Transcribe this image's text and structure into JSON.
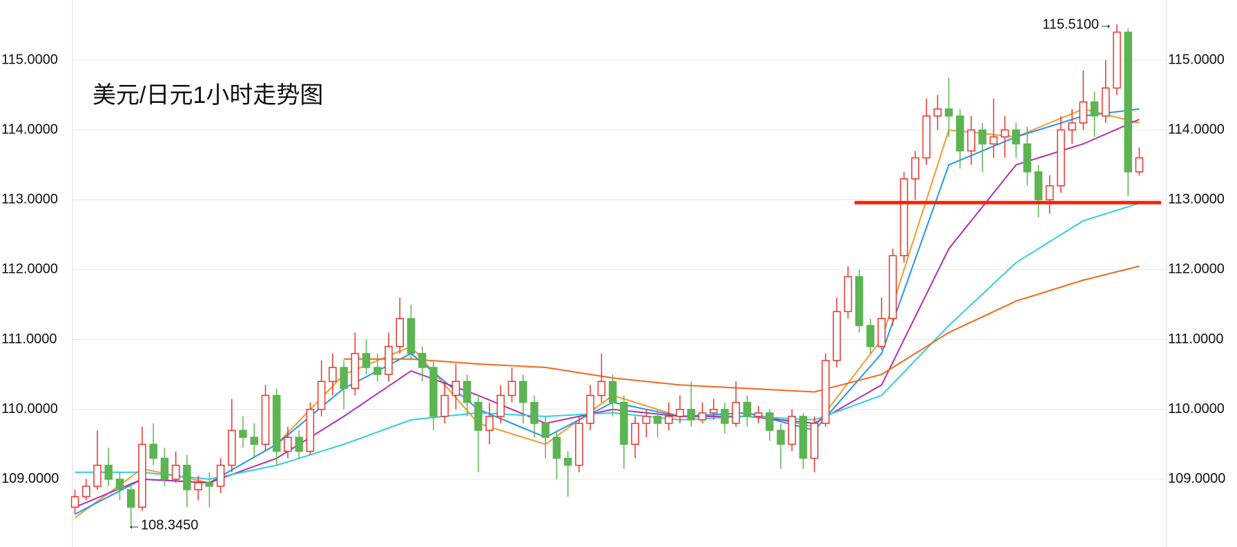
{
  "chart_data": {
    "type": "candlestick",
    "title": "美元/日元1小时走势图",
    "title_color": "#f0321e",
    "ylim": [
      108.03,
      115.86
    ],
    "yticks": [
      {
        "value": 109,
        "label": "109.0000"
      },
      {
        "value": 110,
        "label": "110.0000"
      },
      {
        "value": 111,
        "label": "111.0000"
      },
      {
        "value": 112,
        "label": "112.0000"
      },
      {
        "value": 113,
        "label": "113.0000"
      },
      {
        "value": 114,
        "label": "114.0000"
      },
      {
        "value": 115,
        "label": "115.0000"
      }
    ],
    "grid": true,
    "candles": {
      "up_color": "#e8332a",
      "down_color": "#5cb452",
      "open": [
        108.6,
        108.75,
        108.9,
        109.2,
        109.0,
        108.85,
        108.6,
        109.5,
        109.3,
        109.0,
        109.2,
        108.85,
        108.95,
        108.9,
        109.2,
        109.7,
        109.6,
        109.5,
        110.2,
        109.4,
        109.6,
        109.4,
        110.0,
        110.4,
        110.6,
        110.3,
        110.8,
        110.6,
        110.5,
        110.9,
        111.3,
        110.8,
        110.6,
        109.9,
        110.2,
        110.4,
        110.1,
        109.7,
        109.9,
        110.2,
        110.4,
        110.1,
        109.8,
        109.6,
        109.3,
        109.2,
        109.8,
        110.2,
        110.4,
        110.1,
        109.5,
        109.8,
        109.9,
        109.8,
        109.9,
        110.0,
        109.85,
        109.95,
        110.0,
        109.8,
        110.1,
        109.9,
        109.95,
        109.7,
        109.5,
        109.9,
        109.3,
        109.8,
        110.7,
        111.4,
        111.9,
        111.2,
        110.9,
        111.3,
        112.2,
        113.3,
        113.6,
        114.2,
        114.3,
        114.2,
        113.7,
        114.0,
        113.8,
        113.9,
        114.0,
        113.8,
        113.4,
        113.0,
        113.2,
        114.0,
        114.1,
        114.4,
        114.2,
        114.6,
        115.4,
        113.4
      ],
      "high": [
        108.85,
        109.0,
        109.7,
        109.45,
        109.1,
        108.95,
        109.75,
        109.8,
        109.45,
        109.4,
        109.35,
        109.05,
        109.1,
        109.3,
        110.15,
        109.9,
        109.8,
        110.35,
        110.3,
        109.75,
        109.7,
        110.1,
        110.7,
        110.8,
        110.7,
        111.1,
        111.0,
        110.8,
        111.1,
        111.6,
        111.5,
        110.9,
        110.7,
        110.4,
        110.65,
        110.5,
        110.2,
        110.1,
        110.35,
        110.6,
        110.5,
        110.2,
        109.9,
        109.7,
        109.4,
        109.9,
        110.35,
        110.8,
        110.5,
        110.2,
        109.9,
        110.0,
        110.0,
        110.1,
        110.2,
        110.4,
        110.1,
        110.15,
        110.1,
        110.4,
        110.2,
        110.05,
        110.0,
        109.8,
        110.0,
        109.95,
        109.9,
        110.8,
        111.6,
        112.05,
        112.0,
        111.3,
        111.6,
        112.3,
        113.4,
        113.7,
        114.45,
        114.5,
        114.75,
        114.3,
        114.2,
        114.1,
        114.45,
        114.2,
        114.1,
        114.05,
        113.5,
        113.35,
        114.2,
        114.3,
        114.85,
        114.55,
        115.0,
        115.51,
        115.45,
        113.75
      ],
      "low": [
        108.5,
        108.7,
        108.85,
        108.9,
        108.7,
        108.345,
        108.55,
        109.2,
        108.9,
        108.95,
        108.6,
        108.7,
        108.6,
        108.8,
        109.1,
        109.45,
        109.3,
        109.4,
        109.2,
        109.3,
        109.3,
        109.35,
        109.9,
        110.2,
        110.0,
        110.2,
        110.5,
        110.4,
        110.4,
        110.8,
        110.7,
        110.4,
        109.7,
        109.8,
        110.0,
        109.9,
        109.1,
        109.5,
        109.8,
        110.1,
        109.8,
        109.6,
        109.3,
        109.0,
        108.75,
        109.1,
        109.7,
        110.1,
        109.9,
        109.15,
        109.3,
        109.6,
        109.6,
        109.7,
        109.8,
        109.75,
        109.8,
        109.85,
        109.65,
        109.75,
        109.75,
        109.8,
        109.55,
        109.15,
        109.4,
        109.15,
        109.1,
        109.75,
        110.6,
        111.3,
        111.1,
        110.8,
        110.85,
        111.2,
        112.1,
        113.0,
        113.5,
        114.0,
        113.9,
        113.45,
        113.5,
        113.4,
        113.6,
        113.6,
        113.6,
        113.2,
        112.75,
        112.8,
        113.1,
        113.8,
        114.0,
        113.9,
        114.1,
        114.5,
        113.05,
        113.35
      ],
      "close": [
        108.75,
        108.9,
        109.2,
        109.0,
        108.85,
        108.6,
        109.5,
        109.3,
        109.0,
        109.2,
        108.85,
        108.95,
        108.9,
        109.2,
        109.7,
        109.6,
        109.5,
        110.2,
        109.4,
        109.6,
        109.4,
        110.0,
        110.4,
        110.6,
        110.3,
        110.8,
        110.6,
        110.5,
        110.9,
        111.3,
        110.8,
        110.6,
        109.9,
        110.2,
        110.4,
        110.1,
        109.7,
        109.9,
        110.2,
        110.4,
        110.1,
        109.8,
        109.6,
        109.3,
        109.2,
        109.8,
        110.2,
        110.4,
        110.1,
        109.5,
        109.8,
        109.9,
        109.8,
        109.9,
        110.0,
        109.85,
        109.95,
        110.0,
        109.8,
        110.1,
        109.9,
        109.95,
        109.7,
        109.5,
        109.9,
        109.3,
        109.8,
        110.7,
        111.4,
        111.9,
        111.2,
        110.9,
        111.3,
        112.2,
        113.3,
        113.6,
        114.2,
        114.3,
        114.2,
        113.7,
        114.0,
        113.8,
        113.9,
        114.0,
        113.8,
        113.4,
        113.0,
        113.2,
        114.0,
        114.1,
        114.4,
        114.2,
        114.6,
        115.4,
        113.4,
        113.6
      ]
    },
    "lines": [
      {
        "color": "#f29a2e",
        "x": [
          0,
          6,
          12,
          18,
          24,
          30,
          36,
          42,
          48,
          54,
          60,
          66,
          72,
          78,
          84,
          90,
          95
        ],
        "values": [
          108.45,
          109.15,
          108.95,
          109.5,
          110.5,
          110.9,
          109.8,
          109.5,
          110.2,
          109.9,
          109.95,
          109.75,
          111.0,
          114.0,
          113.9,
          114.3,
          114.1
        ]
      },
      {
        "color": "#2196f3",
        "x": [
          0,
          6,
          12,
          18,
          24,
          30,
          36,
          42,
          48,
          54,
          60,
          66,
          72,
          78,
          84,
          90,
          95
        ],
        "values": [
          108.5,
          109.0,
          108.95,
          109.5,
          110.3,
          110.8,
          110.0,
          109.6,
          110.1,
          109.9,
          109.95,
          109.7,
          110.8,
          113.5,
          113.9,
          114.2,
          114.3
        ]
      },
      {
        "color": "#b02fae",
        "x": [
          0,
          6,
          12,
          18,
          24,
          30,
          36,
          42,
          48,
          54,
          60,
          66,
          72,
          78,
          84,
          90,
          95
        ],
        "values": [
          108.6,
          109.0,
          108.95,
          109.3,
          109.9,
          110.55,
          110.2,
          109.8,
          110.0,
          109.9,
          109.9,
          109.8,
          110.35,
          112.3,
          113.5,
          113.8,
          114.15
        ]
      },
      {
        "color": "#2ccfe0",
        "x": [
          0,
          6,
          12,
          18,
          24,
          30,
          36,
          42,
          48,
          54,
          60,
          66,
          72,
          78,
          84,
          90,
          95
        ],
        "values": [
          109.1,
          109.1,
          109.0,
          109.2,
          109.5,
          109.85,
          109.95,
          109.9,
          109.95,
          109.85,
          109.9,
          109.85,
          110.2,
          111.2,
          112.1,
          112.7,
          112.95
        ]
      },
      {
        "color": "#f5671a",
        "x": [
          24,
          30,
          36,
          42,
          48,
          54,
          60,
          66,
          72,
          78,
          84,
          90,
          95
        ],
        "values": [
          110.72,
          110.72,
          110.65,
          110.6,
          110.45,
          110.35,
          110.3,
          110.25,
          110.5,
          111.1,
          111.55,
          111.85,
          112.05
        ]
      }
    ],
    "hline": {
      "value": 112.96,
      "color": "#ff2200"
    },
    "annotations": [
      "115.5100→",
      "←108.3450"
    ]
  }
}
